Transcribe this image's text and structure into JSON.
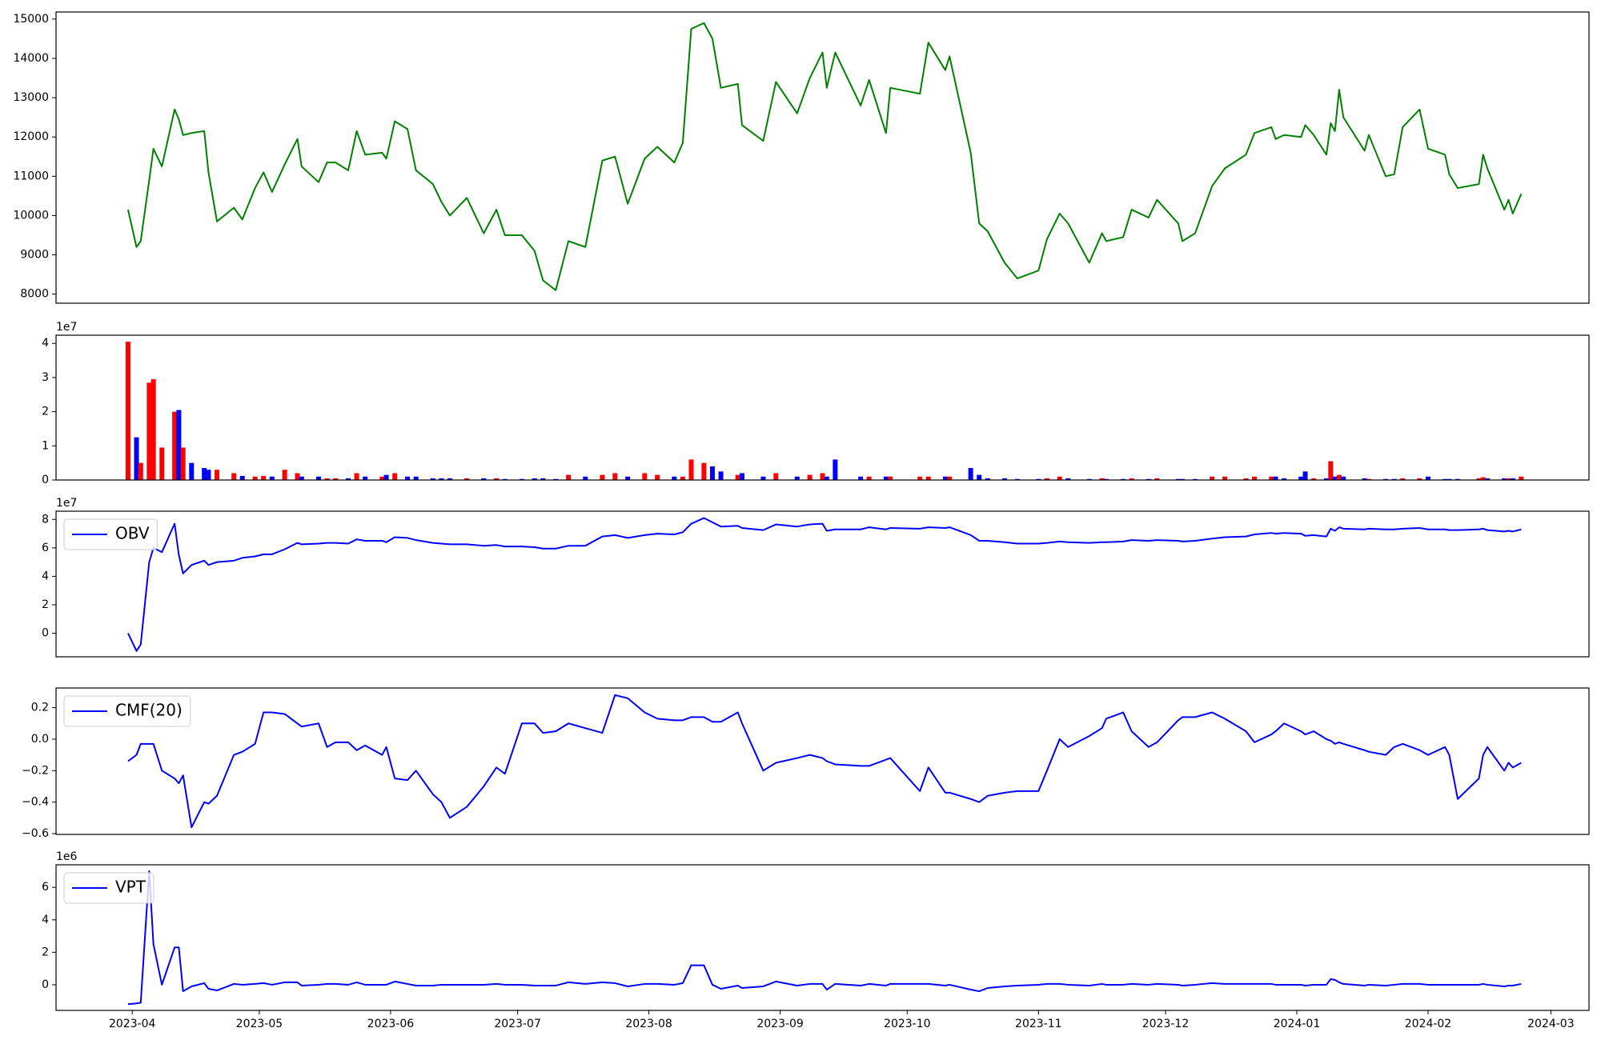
{
  "chart_data": {
    "x": [
      "2023-03-31",
      "2023-04-02",
      "2023-04-03",
      "2023-04-05",
      "2023-04-06",
      "2023-04-08",
      "2023-04-11",
      "2023-04-12",
      "2023-04-13",
      "2023-04-15",
      "2023-04-18",
      "2023-04-19",
      "2023-04-21",
      "2023-04-25",
      "2023-04-27",
      "2023-04-30",
      "2023-05-02",
      "2023-05-04",
      "2023-05-07",
      "2023-05-10",
      "2023-05-11",
      "2023-05-15",
      "2023-05-17",
      "2023-05-19",
      "2023-05-22",
      "2023-05-24",
      "2023-05-26",
      "2023-05-30",
      "2023-05-31",
      "2023-06-02",
      "2023-06-05",
      "2023-06-07",
      "2023-06-11",
      "2023-06-13",
      "2023-06-15",
      "2023-06-19",
      "2023-06-23",
      "2023-06-26",
      "2023-06-28",
      "2023-07-02",
      "2023-07-05",
      "2023-07-07",
      "2023-07-10",
      "2023-07-13",
      "2023-07-17",
      "2023-07-21",
      "2023-07-24",
      "2023-07-27",
      "2023-07-31",
      "2023-08-03",
      "2023-08-07",
      "2023-08-09",
      "2023-08-11",
      "2023-08-14",
      "2023-08-16",
      "2023-08-18",
      "2023-08-22",
      "2023-08-23",
      "2023-08-28",
      "2023-08-31",
      "2023-09-05",
      "2023-09-08",
      "2023-09-11",
      "2023-09-12",
      "2023-09-14",
      "2023-09-20",
      "2023-09-22",
      "2023-09-26",
      "2023-09-27",
      "2023-10-04",
      "2023-10-06",
      "2023-10-10",
      "2023-10-11",
      "2023-10-16",
      "2023-10-18",
      "2023-10-20",
      "2023-10-24",
      "2023-10-27",
      "2023-11-01",
      "2023-11-03",
      "2023-11-06",
      "2023-11-08",
      "2023-11-13",
      "2023-11-16",
      "2023-11-17",
      "2023-11-21",
      "2023-11-23",
      "2023-11-27",
      "2023-11-29",
      "2023-12-04",
      "2023-12-05",
      "2023-12-08",
      "2023-12-12",
      "2023-12-15",
      "2023-12-20",
      "2023-12-22",
      "2023-12-26",
      "2023-12-27",
      "2023-12-29",
      "2024-01-02",
      "2024-01-03",
      "2024-01-05",
      "2024-01-08",
      "2024-01-09",
      "2024-01-10",
      "2024-01-11",
      "2024-01-12",
      "2024-01-17",
      "2024-01-18",
      "2024-01-22",
      "2024-01-24",
      "2024-01-26",
      "2024-01-30",
      "2024-02-01",
      "2024-02-05",
      "2024-02-06",
      "2024-02-08",
      "2024-02-13",
      "2024-02-14",
      "2024-02-15",
      "2024-02-19",
      "2024-02-20",
      "2024-02-21",
      "2024-02-23"
    ],
    "xlim": [
      "2023-03-14",
      "2024-03-10"
    ],
    "xticks": [
      {
        "value": "2023-04-01",
        "label": "2023-04"
      },
      {
        "value": "2023-05-01",
        "label": "2023-05"
      },
      {
        "value": "2023-06-01",
        "label": "2023-06"
      },
      {
        "value": "2023-07-01",
        "label": "2023-07"
      },
      {
        "value": "2023-08-01",
        "label": "2023-08"
      },
      {
        "value": "2023-09-01",
        "label": "2023-09"
      },
      {
        "value": "2023-10-01",
        "label": "2023-10"
      },
      {
        "value": "2023-11-01",
        "label": "2023-11"
      },
      {
        "value": "2023-12-01",
        "label": "2023-12"
      },
      {
        "value": "2024-01-01",
        "label": "2024-01"
      },
      {
        "value": "2024-02-01",
        "label": "2024-02"
      },
      {
        "value": "2024-03-01",
        "label": "2024-03"
      }
    ],
    "panels": [
      {
        "type": "line",
        "color": "green",
        "ylim": [
          7770,
          15180
        ],
        "yticks": [
          8000,
          9000,
          10000,
          11000,
          12000,
          13000,
          14000,
          15000
        ],
        "values": [
          10150,
          9200,
          9350,
          10900,
          11700,
          11250,
          12700,
          12450,
          12050,
          12100,
          12150,
          11100,
          9850,
          10200,
          9900,
          10700,
          11100,
          10600,
          11300,
          11950,
          11250,
          10850,
          11350,
          11350,
          11150,
          12150,
          11550,
          11600,
          11450,
          12400,
          12200,
          11150,
          10800,
          10350,
          10000,
          10450,
          9550,
          10150,
          9500,
          9500,
          9100,
          8350,
          8100,
          9350,
          9200,
          11400,
          11500,
          10300,
          11450,
          11750,
          11350,
          11850,
          14750,
          14900,
          14500,
          13250,
          13350,
          12300,
          11900,
          13400,
          12600,
          13500,
          14150,
          13250,
          14150,
          12800,
          13450,
          12100,
          13250,
          13100,
          14400,
          13700,
          14050,
          11600,
          9800,
          9600,
          8800,
          8400,
          8600,
          9400,
          10050,
          9800,
          8800,
          9550,
          9350,
          9450,
          10150,
          9950,
          10400,
          9800,
          9350,
          9550,
          10750,
          11200,
          11550,
          12100,
          12250,
          11950,
          12050,
          12000,
          12300,
          12050,
          11550,
          12350,
          12150,
          13200,
          12500,
          11650,
          12050,
          11000,
          11050,
          12250,
          12700,
          11700,
          11550,
          11050,
          10700,
          10800,
          11550,
          11200,
          10150,
          10400,
          10050,
          10550
        ]
      },
      {
        "type": "bar",
        "offset_label": "1e7",
        "ylim": [
          0,
          4.24
        ],
        "yticks": [
          0,
          1,
          2,
          3,
          4
        ],
        "values": [
          4.05,
          1.25,
          0.5,
          2.85,
          2.95,
          0.95,
          2.0,
          2.05,
          0.95,
          0.5,
          0.35,
          0.3,
          0.3,
          0.2,
          0.12,
          0.1,
          0.12,
          0.1,
          0.3,
          0.2,
          0.1,
          0.1,
          0.05,
          0.05,
          0.05,
          0.2,
          0.1,
          0.1,
          0.15,
          0.2,
          0.1,
          0.1,
          0.05,
          0.05,
          0.05,
          0.05,
          0.05,
          0.05,
          0.03,
          0.03,
          0.05,
          0.05,
          0.03,
          0.15,
          0.1,
          0.15,
          0.2,
          0.1,
          0.2,
          0.15,
          0.1,
          0.1,
          0.6,
          0.5,
          0.4,
          0.25,
          0.15,
          0.2,
          0.1,
          0.2,
          0.1,
          0.15,
          0.2,
          0.1,
          0.6,
          0.1,
          0.1,
          0.1,
          0.1,
          0.1,
          0.1,
          0.1,
          0.1,
          0.35,
          0.15,
          0.05,
          0.05,
          0.03,
          0.03,
          0.05,
          0.1,
          0.05,
          0.03,
          0.05,
          0.03,
          0.03,
          0.05,
          0.03,
          0.05,
          0.03,
          0.03,
          0.03,
          0.1,
          0.1,
          0.05,
          0.1,
          0.1,
          0.1,
          0.05,
          0.1,
          0.25,
          0.05,
          0.05,
          0.55,
          0.1,
          0.15,
          0.1,
          0.05,
          0.03,
          0.03,
          0.03,
          0.05,
          0.05,
          0.1,
          0.03,
          0.03,
          0.03,
          0.05,
          0.08,
          0.05,
          0.05,
          0.05,
          0.05,
          0.1
        ],
        "colors": [
          "red",
          "blue",
          "red",
          "red",
          "red",
          "red",
          "red",
          "blue",
          "red",
          "blue",
          "blue",
          "blue",
          "red",
          "red",
          "blue",
          "red",
          "red",
          "blue",
          "red",
          "red",
          "blue",
          "blue",
          "red",
          "red",
          "blue",
          "red",
          "blue",
          "red",
          "blue",
          "red",
          "blue",
          "blue",
          "blue",
          "blue",
          "blue",
          "red",
          "blue",
          "red",
          "blue",
          "blue",
          "blue",
          "blue",
          "blue",
          "red",
          "blue",
          "red",
          "red",
          "blue",
          "red",
          "red",
          "blue",
          "red",
          "red",
          "red",
          "blue",
          "blue",
          "red",
          "blue",
          "blue",
          "red",
          "blue",
          "red",
          "red",
          "blue",
          "blue",
          "blue",
          "red",
          "blue",
          "red",
          "red",
          "red",
          "blue",
          "red",
          "blue",
          "blue",
          "blue",
          "blue",
          "blue",
          "blue",
          "red",
          "red",
          "blue",
          "blue",
          "red",
          "blue",
          "blue",
          "red",
          "blue",
          "red",
          "blue",
          "blue",
          "blue",
          "red",
          "red",
          "red",
          "red",
          "red",
          "blue",
          "blue",
          "blue",
          "blue",
          "red",
          "blue",
          "red",
          "blue",
          "red",
          "blue",
          "blue",
          "red",
          "blue",
          "blue",
          "red",
          "red",
          "blue",
          "blue",
          "blue",
          "blue",
          "red",
          "red",
          "blue",
          "blue",
          "red",
          "blue",
          "red"
        ]
      },
      {
        "type": "line",
        "offset_label": "1e7",
        "legend": "upper left",
        "ylim": [
          -1.66,
          8.58
        ],
        "yticks": [
          0,
          2,
          4,
          6,
          8
        ],
        "series": [
          {
            "name": "OBV",
            "color": "blue",
            "values": [
              0,
              -1.25,
              -0.8,
              5.0,
              6.0,
              5.7,
              7.7,
              5.5,
              4.2,
              4.8,
              5.1,
              4.8,
              5.0,
              5.1,
              5.3,
              5.4,
              5.55,
              5.55,
              5.9,
              6.35,
              6.25,
              6.3,
              6.35,
              6.35,
              6.3,
              6.6,
              6.5,
              6.5,
              6.4,
              6.75,
              6.7,
              6.55,
              6.35,
              6.3,
              6.25,
              6.25,
              6.15,
              6.2,
              6.1,
              6.1,
              6.05,
              5.95,
              5.95,
              6.15,
              6.15,
              6.8,
              6.9,
              6.7,
              6.9,
              7.0,
              6.95,
              7.1,
              7.7,
              8.1,
              7.8,
              7.5,
              7.55,
              7.4,
              7.25,
              7.65,
              7.5,
              7.65,
              7.7,
              7.2,
              7.3,
              7.3,
              7.45,
              7.3,
              7.4,
              7.35,
              7.45,
              7.4,
              7.45,
              6.9,
              6.5,
              6.5,
              6.4,
              6.3,
              6.3,
              6.35,
              6.45,
              6.4,
              6.35,
              6.4,
              6.4,
              6.45,
              6.55,
              6.5,
              6.55,
              6.5,
              6.45,
              6.5,
              6.65,
              6.75,
              6.8,
              6.95,
              7.05,
              7.0,
              7.05,
              7.0,
              6.85,
              6.9,
              6.8,
              7.35,
              7.2,
              7.45,
              7.35,
              7.3,
              7.35,
              7.3,
              7.3,
              7.35,
              7.4,
              7.3,
              7.3,
              7.25,
              7.25,
              7.3,
              7.35,
              7.25,
              7.15,
              7.2,
              7.15,
              7.3
            ]
          }
        ]
      },
      {
        "type": "line",
        "legend": "upper left",
        "ylim": [
          -0.605,
          0.325
        ],
        "yticks": [
          {
            "value": -0.6,
            "label": "−0.6"
          },
          {
            "value": -0.4,
            "label": "−0.4"
          },
          {
            "value": -0.2,
            "label": "−0.2"
          },
          {
            "value": 0,
            "label": "0.0"
          },
          {
            "value": 0.2,
            "label": "0.2"
          }
        ],
        "series": [
          {
            "name": "CMF(20)",
            "color": "blue",
            "values": [
              -0.14,
              -0.1,
              -0.03,
              -0.03,
              -0.03,
              -0.2,
              -0.25,
              -0.28,
              -0.23,
              -0.56,
              -0.4,
              -0.41,
              -0.36,
              -0.1,
              -0.08,
              -0.03,
              0.17,
              0.17,
              0.16,
              0.1,
              0.08,
              0.1,
              -0.05,
              -0.02,
              -0.02,
              -0.07,
              -0.04,
              -0.1,
              -0.05,
              -0.25,
              -0.26,
              -0.2,
              -0.35,
              -0.4,
              -0.5,
              -0.43,
              -0.3,
              -0.18,
              -0.22,
              0.1,
              0.1,
              0.04,
              0.05,
              0.1,
              0.07,
              0.04,
              0.28,
              0.26,
              0.17,
              0.13,
              0.12,
              0.12,
              0.14,
              0.14,
              0.11,
              0.11,
              0.17,
              0.1,
              -0.2,
              -0.15,
              -0.12,
              -0.1,
              -0.12,
              -0.14,
              -0.16,
              -0.17,
              -0.17,
              -0.13,
              -0.12,
              -0.33,
              -0.18,
              -0.34,
              -0.34,
              -0.38,
              -0.4,
              -0.36,
              -0.34,
              -0.33,
              -0.33,
              -0.2,
              0.0,
              -0.05,
              0.02,
              0.07,
              0.13,
              0.17,
              0.05,
              -0.05,
              -0.02,
              0.12,
              0.14,
              0.14,
              0.17,
              0.13,
              0.05,
              -0.02,
              0.03,
              0.05,
              0.1,
              0.05,
              0.03,
              0.05,
              0.0,
              -0.01,
              -0.03,
              -0.02,
              -0.03,
              -0.07,
              -0.08,
              -0.1,
              -0.05,
              -0.03,
              -0.07,
              -0.1,
              -0.05,
              -0.1,
              -0.38,
              -0.25,
              -0.1,
              -0.05,
              -0.2,
              -0.15,
              -0.18,
              -0.15
            ]
          }
        ]
      },
      {
        "type": "line",
        "offset_label": "1e6",
        "legend": "upper left",
        "ylim": [
          -1.58,
          7.39
        ],
        "yticks": [
          0,
          2,
          4,
          6
        ],
        "series": [
          {
            "name": "VPT",
            "color": "blue",
            "values": [
              -1.2,
              -1.15,
              -1.1,
              7.0,
              2.5,
              0.0,
              2.3,
              2.3,
              -0.4,
              -0.1,
              0.1,
              -0.25,
              -0.35,
              0.05,
              0.0,
              0.05,
              0.1,
              0.0,
              0.15,
              0.15,
              -0.05,
              0.0,
              0.05,
              0.05,
              0.0,
              0.15,
              0.0,
              0.0,
              0.0,
              0.2,
              0.05,
              -0.05,
              -0.05,
              0.0,
              0.0,
              0.0,
              0.0,
              0.05,
              0.0,
              0.0,
              -0.05,
              -0.05,
              -0.05,
              0.15,
              0.05,
              0.15,
              0.1,
              -0.1,
              0.05,
              0.05,
              0.0,
              0.1,
              1.2,
              1.2,
              0.0,
              -0.25,
              -0.05,
              -0.2,
              -0.1,
              0.2,
              -0.05,
              0.05,
              0.05,
              -0.3,
              0.05,
              -0.05,
              0.05,
              -0.05,
              0.05,
              0.05,
              0.05,
              -0.05,
              0.0,
              -0.3,
              -0.4,
              -0.2,
              -0.1,
              -0.05,
              0.0,
              0.05,
              0.05,
              0.0,
              -0.05,
              0.05,
              0.0,
              0.0,
              0.05,
              0.0,
              0.05,
              0.0,
              -0.05,
              0.0,
              0.1,
              0.05,
              0.05,
              0.05,
              0.05,
              0.0,
              0.0,
              0.0,
              -0.05,
              0.0,
              0.0,
              0.35,
              0.3,
              0.15,
              0.05,
              -0.05,
              0.0,
              -0.05,
              0.0,
              0.05,
              0.05,
              0.0,
              0.0,
              0.0,
              0.0,
              0.0,
              0.05,
              0.0,
              -0.1,
              -0.05,
              -0.05,
              0.05
            ]
          }
        ]
      }
    ]
  }
}
